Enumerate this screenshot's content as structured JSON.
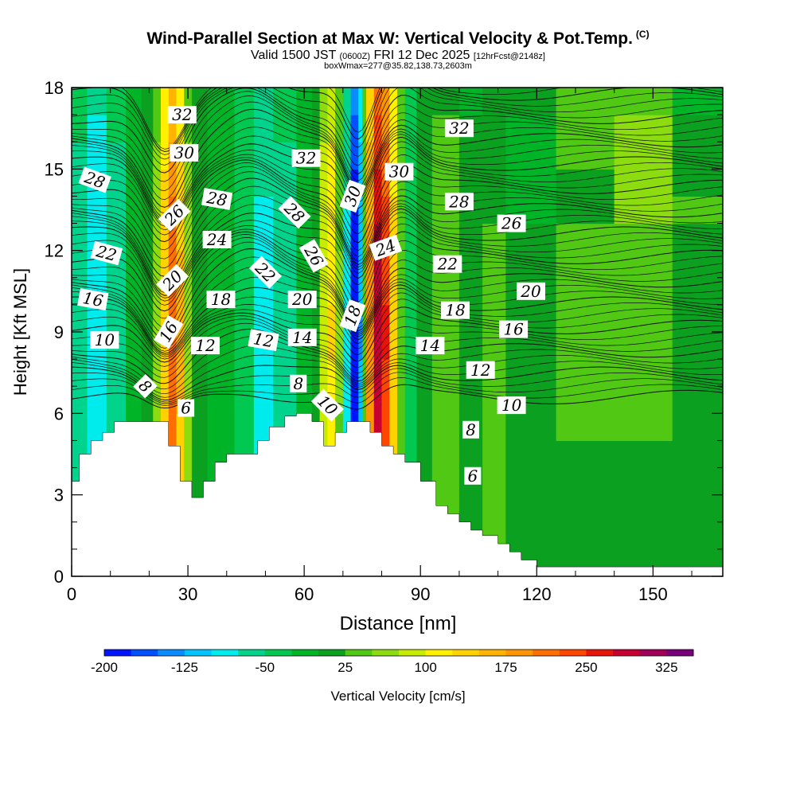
{
  "header": {
    "title_main": "Wind-Parallel Section at Max W: Vertical Velocity & Pot.Temp.",
    "title_c": "(C)",
    "valid_main": "Valid 1500 JST",
    "valid_utc": "(0600Z)",
    "valid_date": "FRI 12 Dec 2025",
    "valid_fcst": "[12hrFcst@2148z]",
    "box_info": "boxWmax=277@35.82,138.73,2603m"
  },
  "chart_data": {
    "type": "heatmap",
    "title": "Wind-Parallel Section at Max W: Vertical Velocity & Pot.Temp.",
    "xlabel": "Distance [nm]",
    "ylabel": "Height [Kft MSL]",
    "xlim": [
      0,
      168
    ],
    "ylim": [
      0,
      18
    ],
    "xticks": [
      0,
      30,
      60,
      90,
      120,
      150
    ],
    "yticks": [
      0,
      3,
      6,
      9,
      12,
      15,
      18
    ],
    "colorbar": {
      "label": "Vertical Velocity [cm/s]",
      "tick_labels": [
        "-200",
        "-125",
        "-50",
        "25",
        "100",
        "175",
        "250",
        "325"
      ],
      "tick_values": [
        -200,
        -125,
        -50,
        25,
        100,
        175,
        250,
        325
      ],
      "range": [
        -200,
        350
      ],
      "step": 25,
      "colors": [
        "#0014ff",
        "#0050ff",
        "#0a8cff",
        "#00c4ff",
        "#00ecec",
        "#00d48c",
        "#00c850",
        "#00b428",
        "#0ca020",
        "#50c814",
        "#8cdc10",
        "#c8ec00",
        "#fff000",
        "#ffd200",
        "#ffb400",
        "#ff9600",
        "#ff6e00",
        "#ff4600",
        "#e8140a",
        "#c80032",
        "#a0005a",
        "#780078"
      ]
    },
    "terrain_kft": [
      [
        0,
        3.5
      ],
      [
        2,
        3.5
      ],
      [
        2,
        4.5
      ],
      [
        5,
        4.5
      ],
      [
        5,
        5.0
      ],
      [
        8,
        5.0
      ],
      [
        8,
        5.3
      ],
      [
        11,
        5.3
      ],
      [
        11,
        5.7
      ],
      [
        25,
        5.7
      ],
      [
        25,
        4.8
      ],
      [
        28,
        4.8
      ],
      [
        28,
        3.5
      ],
      [
        31,
        3.5
      ],
      [
        31,
        2.9
      ],
      [
        34,
        2.9
      ],
      [
        34,
        3.5
      ],
      [
        37,
        3.5
      ],
      [
        37,
        4.2
      ],
      [
        40,
        4.2
      ],
      [
        40,
        4.5
      ],
      [
        48,
        4.5
      ],
      [
        48,
        5.0
      ],
      [
        51,
        5.0
      ],
      [
        51,
        5.5
      ],
      [
        55,
        5.5
      ],
      [
        55,
        5.9
      ],
      [
        58,
        5.9
      ],
      [
        58,
        6.0
      ],
      [
        62,
        6.0
      ],
      [
        62,
        5.7
      ],
      [
        65,
        5.7
      ],
      [
        65,
        4.8
      ],
      [
        68,
        4.8
      ],
      [
        68,
        5.3
      ],
      [
        71,
        5.3
      ],
      [
        71,
        5.7
      ],
      [
        77,
        5.7
      ],
      [
        77,
        5.3
      ],
      [
        80,
        5.3
      ],
      [
        80,
        4.8
      ],
      [
        83,
        4.8
      ],
      [
        83,
        4.5
      ],
      [
        86,
        4.5
      ],
      [
        86,
        4.2
      ],
      [
        90,
        4.2
      ],
      [
        90,
        3.5
      ],
      [
        94,
        3.5
      ],
      [
        94,
        2.6
      ],
      [
        97,
        2.6
      ],
      [
        97,
        2.3
      ],
      [
        100,
        2.3
      ],
      [
        100,
        2.0
      ],
      [
        103,
        2.0
      ],
      [
        103,
        1.7
      ],
      [
        106,
        1.7
      ],
      [
        106,
        1.5
      ],
      [
        110,
        1.5
      ],
      [
        110,
        1.2
      ],
      [
        113,
        1.2
      ],
      [
        113,
        0.9
      ],
      [
        116,
        0.9
      ],
      [
        116,
        0.6
      ],
      [
        120,
        0.6
      ],
      [
        120,
        0.35
      ],
      [
        168,
        0.35
      ]
    ],
    "w_columns_cms": [
      {
        "x0": 0,
        "x1": 4,
        "w": -60
      },
      {
        "x0": 4,
        "x1": 9,
        "w": -95
      },
      {
        "x0": 9,
        "x1": 14,
        "w": -60
      },
      {
        "x0": 14,
        "x1": 18,
        "w": -20
      },
      {
        "x0": 18,
        "x1": 21,
        "w": 10
      },
      {
        "x0": 21,
        "x1": 23,
        "w": 60
      },
      {
        "x0": 23,
        "x1": 25,
        "w": 140
      },
      {
        "x0": 25,
        "x1": 27,
        "w": 210
      },
      {
        "x0": 27,
        "x1": 29,
        "w": 150
      },
      {
        "x0": 29,
        "x1": 31,
        "w": 60
      },
      {
        "x0": 31,
        "x1": 35,
        "w": 5
      },
      {
        "x0": 35,
        "x1": 42,
        "w": -15
      },
      {
        "x0": 42,
        "x1": 47,
        "w": -40
      },
      {
        "x0": 47,
        "x1": 52,
        "w": -80
      },
      {
        "x0": 52,
        "x1": 58,
        "w": -60
      },
      {
        "x0": 58,
        "x1": 62,
        "w": -20
      },
      {
        "x0": 62,
        "x1": 64,
        "w": 20
      },
      {
        "x0": 64,
        "x1": 66,
        "w": 90
      },
      {
        "x0": 66,
        "x1": 68,
        "w": 120
      },
      {
        "x0": 68,
        "x1": 70,
        "w": 50
      },
      {
        "x0": 70,
        "x1": 72,
        "w": -80
      },
      {
        "x0": 72,
        "x1": 74,
        "w": -190
      },
      {
        "x0": 74,
        "x1": 75,
        "w": -120
      },
      {
        "x0": 75,
        "x1": 76,
        "w": 30
      },
      {
        "x0": 76,
        "x1": 78,
        "w": 180
      },
      {
        "x0": 78,
        "x1": 80,
        "w": 277
      },
      {
        "x0": 80,
        "x1": 82,
        "w": 240
      },
      {
        "x0": 82,
        "x1": 84,
        "w": 130
      },
      {
        "x0": 84,
        "x1": 86,
        "w": 40
      },
      {
        "x0": 86,
        "x1": 89,
        "w": -30
      },
      {
        "x0": 89,
        "x1": 93,
        "w": 15
      },
      {
        "x0": 93,
        "x1": 100,
        "w": 30
      },
      {
        "x0": 100,
        "x1": 106,
        "w": 20
      },
      {
        "x0": 106,
        "x1": 112,
        "w": 35
      },
      {
        "x0": 112,
        "x1": 125,
        "w": 15
      },
      {
        "x0": 125,
        "x1": 140,
        "w": 25
      },
      {
        "x0": 140,
        "x1": 155,
        "w": 30
      },
      {
        "x0": 155,
        "x1": 168,
        "w": 20
      }
    ],
    "theta_levels_c": [
      6,
      8,
      10,
      12,
      14,
      16,
      18,
      20,
      22,
      24,
      26,
      28,
      30,
      32
    ],
    "contour_labels": [
      {
        "text": "32",
        "x": 28.5,
        "y": 17.0,
        "rot": 0
      },
      {
        "text": "30",
        "x": 29.0,
        "y": 15.6,
        "rot": 0
      },
      {
        "text": "28",
        "x": 6.0,
        "y": 14.6,
        "rot": 20
      },
      {
        "text": "28",
        "x": 37.5,
        "y": 13.9,
        "rot": 10
      },
      {
        "text": "26",
        "x": 26.5,
        "y": 13.3,
        "rot": -45
      },
      {
        "text": "24",
        "x": 37.5,
        "y": 12.4,
        "rot": 0
      },
      {
        "text": "22",
        "x": 9.0,
        "y": 11.9,
        "rot": 15
      },
      {
        "text": "20",
        "x": 26.0,
        "y": 10.9,
        "rot": -45
      },
      {
        "text": "18",
        "x": 38.5,
        "y": 10.2,
        "rot": 0
      },
      {
        "text": "16",
        "x": 5.5,
        "y": 10.2,
        "rot": 10
      },
      {
        "text": "16",
        "x": 25.0,
        "y": 9.0,
        "rot": -60
      },
      {
        "text": "10",
        "x": 8.5,
        "y": 8.7,
        "rot": 0
      },
      {
        "text": "12",
        "x": 34.5,
        "y": 8.5,
        "rot": 0
      },
      {
        "text": "8",
        "x": 19.0,
        "y": 7.0,
        "rot": 45
      },
      {
        "text": "6",
        "x": 29.5,
        "y": 6.2,
        "rot": 0
      },
      {
        "text": "32",
        "x": 60.5,
        "y": 15.4,
        "rot": 0
      },
      {
        "text": "28",
        "x": 57.5,
        "y": 13.4,
        "rot": 45
      },
      {
        "text": "22",
        "x": 50.0,
        "y": 11.2,
        "rot": 45
      },
      {
        "text": "26",
        "x": 62.5,
        "y": 11.8,
        "rot": 60
      },
      {
        "text": "20",
        "x": 59.5,
        "y": 10.2,
        "rot": 0
      },
      {
        "text": "12",
        "x": 49.5,
        "y": 8.7,
        "rot": 10
      },
      {
        "text": "14",
        "x": 59.5,
        "y": 8.8,
        "rot": 0
      },
      {
        "text": "8",
        "x": 58.5,
        "y": 7.1,
        "rot": 0
      },
      {
        "text": "10",
        "x": 66.0,
        "y": 6.3,
        "rot": 45
      },
      {
        "text": "30",
        "x": 72.5,
        "y": 14.0,
        "rot": -70
      },
      {
        "text": "18",
        "x": 72.5,
        "y": 9.6,
        "rot": -70
      },
      {
        "text": "30",
        "x": 84.5,
        "y": 14.9,
        "rot": 0
      },
      {
        "text": "24",
        "x": 81.0,
        "y": 12.1,
        "rot": -20
      },
      {
        "text": "32",
        "x": 100.0,
        "y": 16.5,
        "rot": 0
      },
      {
        "text": "28",
        "x": 100.0,
        "y": 13.8,
        "rot": 0
      },
      {
        "text": "26",
        "x": 113.5,
        "y": 13.0,
        "rot": 0
      },
      {
        "text": "22",
        "x": 97.0,
        "y": 11.5,
        "rot": 0
      },
      {
        "text": "20",
        "x": 118.5,
        "y": 10.5,
        "rot": 0
      },
      {
        "text": "18",
        "x": 99.0,
        "y": 9.8,
        "rot": 0
      },
      {
        "text": "16",
        "x": 114.0,
        "y": 9.1,
        "rot": 0
      },
      {
        "text": "14",
        "x": 92.5,
        "y": 8.5,
        "rot": 0
      },
      {
        "text": "12",
        "x": 105.5,
        "y": 7.6,
        "rot": 0
      },
      {
        "text": "10",
        "x": 113.5,
        "y": 6.3,
        "rot": 0
      },
      {
        "text": "8",
        "x": 103.0,
        "y": 5.4,
        "rot": 0
      },
      {
        "text": "6",
        "x": 103.5,
        "y": 3.7,
        "rot": 0
      }
    ]
  }
}
